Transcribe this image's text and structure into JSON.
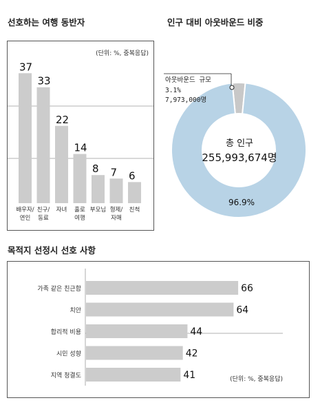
{
  "left_chart": {
    "section_title": "선호하는 여행 동반자",
    "unit": "(단위: %, 중복응답)",
    "chart_data": {
      "type": "bar",
      "categories": [
        [
          "배우자/",
          "연인"
        ],
        [
          "친구/",
          "동료"
        ],
        [
          "자녀"
        ],
        [
          "홀로",
          "여행"
        ],
        [
          "부모님"
        ],
        [
          "형제/",
          "자매"
        ],
        [
          "친척"
        ]
      ],
      "values": [
        37,
        33,
        22,
        14,
        8,
        7,
        6
      ],
      "ylim": [
        0,
        40
      ]
    }
  },
  "right_chart": {
    "section_title": "인구 대비 아웃바운드 비중",
    "chart_data": {
      "type": "pie",
      "slices": [
        {
          "name": "아웃바운드 규모",
          "percent": 3.1,
          "count": "7,973,000명",
          "color": "#c8c8c8"
        },
        {
          "name": "총 인구",
          "percent": 96.9,
          "count": "255,993,674명",
          "color": "#b8d3e6"
        }
      ]
    },
    "callout": {
      "title": "아웃바운드 규모",
      "percent": "3.1%",
      "count": "7,973,000명"
    },
    "center": {
      "label": "총 인구",
      "value": "255,993,674명"
    },
    "main_pct": "96.9%"
  },
  "bottom_chart": {
    "section_title": "목적지 선정시 선호 사항",
    "unit": "(단위: %, 중복응답)",
    "chart_data": {
      "type": "bar",
      "orientation": "horizontal",
      "categories": [
        "가족 같은 친근함",
        "치안",
        "합리적 비용",
        "시민 성향",
        "지역 청결도"
      ],
      "values": [
        66,
        64,
        44,
        42,
        41
      ],
      "xlim": [
        0,
        70
      ]
    }
  },
  "colors": {
    "bar": "#cccccc",
    "donut_main": "#b8d3e6",
    "donut_small": "#c8c8c8",
    "grid": "#999999"
  }
}
